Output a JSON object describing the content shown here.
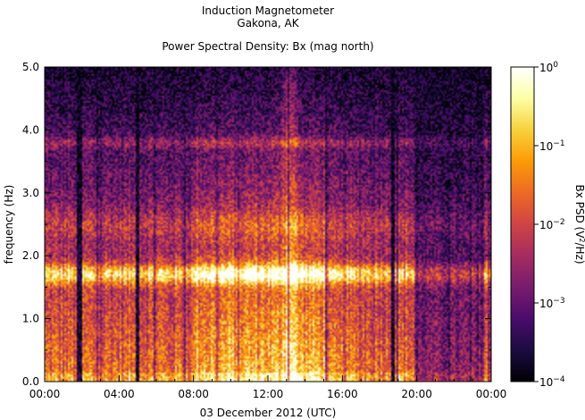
{
  "header": {
    "line1": "Induction Magnetometer",
    "line2": "Gakona, AK",
    "subtitle": "Power Spectral Density: Bx (mag north)"
  },
  "chart_data": {
    "type": "heatmap",
    "title": "Power Spectral Density: Bx (mag north)",
    "xlabel": "03 December 2012 (UTC)",
    "ylabel": "frequency (Hz)",
    "x_ticks": [
      "00:00",
      "04:00",
      "08:00",
      "12:00",
      "16:00",
      "20:00",
      "00:00"
    ],
    "xlim_hours": [
      0,
      24
    ],
    "y_ticks": [
      "0.0",
      "1.0",
      "2.0",
      "3.0",
      "4.0",
      "5.0"
    ],
    "ylim": [
      0,
      5
    ],
    "colorbar": {
      "label_parts": [
        "Bx PSD (V",
        "2",
        "/Hz)"
      ],
      "scale": "log",
      "range": [
        0.0001,
        1
      ],
      "ticks": [
        {
          "base": "10",
          "exp": "0",
          "value": 1
        },
        {
          "base": "10",
          "exp": "−1",
          "value": 0.1
        },
        {
          "base": "10",
          "exp": "−2",
          "value": 0.01
        },
        {
          "base": "10",
          "exp": "−3",
          "value": 0.001
        },
        {
          "base": "10",
          "exp": "−4",
          "value": 0.0001
        }
      ],
      "colormap": [
        "#000004",
        "#1b0c41",
        "#4a0c6b",
        "#781c6d",
        "#a52c60",
        "#cf4446",
        "#ed6925",
        "#fb9b06",
        "#f7d13d",
        "#fcffa4",
        "#ffffff"
      ]
    },
    "features": {
      "strong_band_hz": 1.7,
      "secondary_bands_hz": [
        2.5,
        3.8
      ],
      "data_gaps_hours": [
        [
          1.7,
          1.95
        ],
        [
          4.85,
          5.05
        ],
        [
          18.6,
          18.8
        ]
      ],
      "quiet_interval_hours": [
        19.8,
        23.6
      ]
    }
  }
}
